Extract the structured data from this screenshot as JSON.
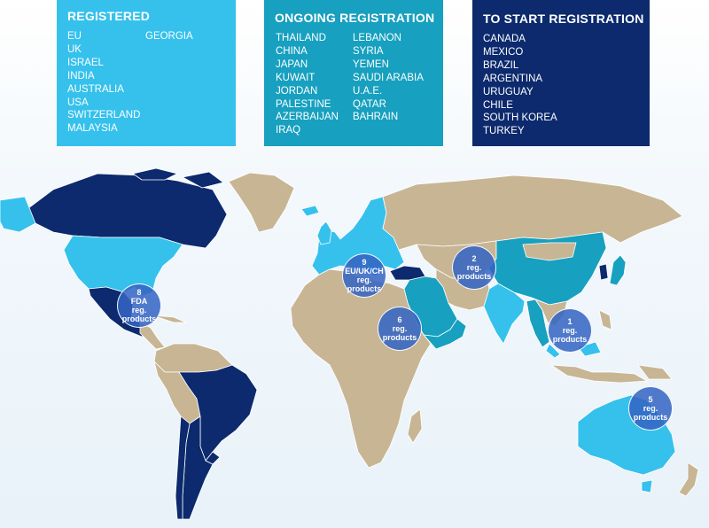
{
  "panels": {
    "registered": {
      "title": "REGISTERED",
      "col1": [
        "EU",
        "UK",
        "ISRAEL",
        "INDIA",
        "AUSTRALIA",
        "USA",
        "SWITZERLAND",
        "MALAYSIA"
      ],
      "col2": [
        "GEORGIA"
      ]
    },
    "ongoing": {
      "title": "ONGOING REGISTRATION",
      "col1": [
        "THAILAND",
        "CHINA",
        "JAPAN",
        "KUWAIT",
        "JORDAN",
        "PALESTINE",
        "AZERBAIJAN",
        "IRAQ"
      ],
      "col2": [
        "LEBANON",
        "SYRIA",
        "YEMEN",
        "SAUDI ARABIA",
        "U.A.E.",
        "QATAR",
        "BAHRAIN"
      ]
    },
    "to_start": {
      "title": "TO START REGISTRATION",
      "col1": [
        "CANADA",
        "MEXICO",
        "BRAZIL",
        "ARGENTINA",
        "URUGUAY",
        "CHILE",
        "SOUTH KOREA",
        "TURKEY"
      ]
    }
  },
  "bubbles": [
    {
      "id": "usa",
      "lines": [
        "8",
        "FDA",
        "reg.",
        "products"
      ]
    },
    {
      "id": "europe",
      "lines": [
        "9",
        "EU/UK/CH",
        "reg.",
        "products"
      ]
    },
    {
      "id": "middle-east",
      "lines": [
        "6",
        "reg.",
        "products"
      ]
    },
    {
      "id": "central-asia",
      "lines": [
        "2",
        "reg.",
        "products"
      ]
    },
    {
      "id": "southeast-asia",
      "lines": [
        "1",
        "reg.",
        "products"
      ]
    },
    {
      "id": "australia",
      "lines": [
        "5",
        "reg.",
        "products"
      ]
    }
  ],
  "colors": {
    "registered": "#35c1ec",
    "ongoing": "#17a0bf",
    "to_start": "#0c2a6d",
    "other": "#c8b594",
    "bubble": "#3464c2"
  }
}
